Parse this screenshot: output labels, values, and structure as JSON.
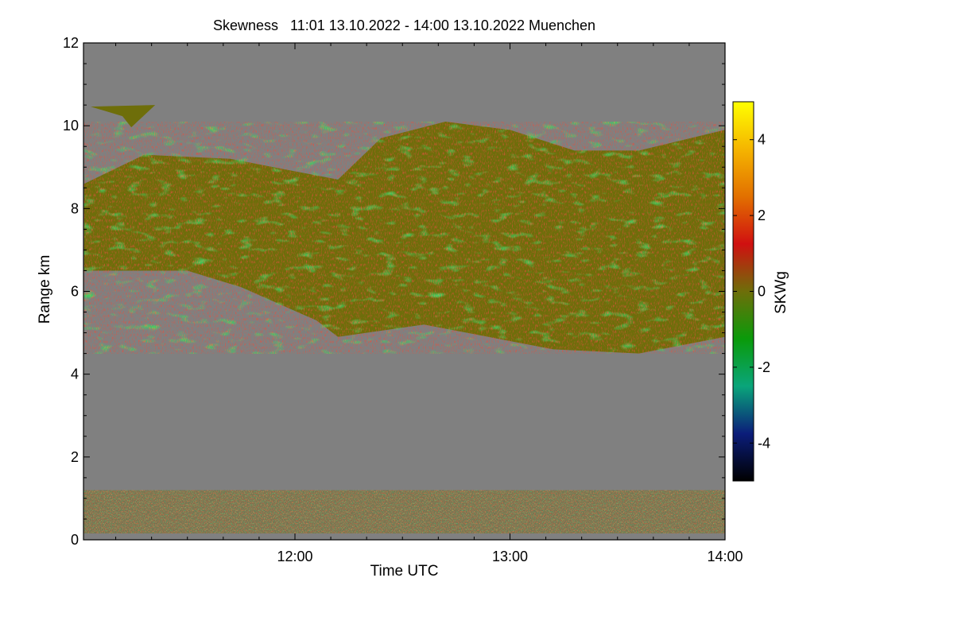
{
  "chart_data": {
    "type": "heatmap",
    "title": "Skewness   11:01 13.10.2022 - 14:00 13.10.2022 Muenchen",
    "xlabel": "Time UTC",
    "ylabel": "Range km",
    "x_ticks": [
      "12:00",
      "13:00",
      "14:00"
    ],
    "x_tick_hours": [
      12,
      13,
      14
    ],
    "xlim_hours": [
      11.0167,
      14.0
    ],
    "y_ticks": [
      "0",
      "2",
      "4",
      "6",
      "8",
      "10",
      "12"
    ],
    "y_tick_values": [
      0,
      2,
      4,
      6,
      8,
      10,
      12
    ],
    "ylim_km": [
      0,
      12
    ],
    "colorbar": {
      "label": "SKWg",
      "ticks": [
        "-4",
        "-2",
        "0",
        "2",
        "4"
      ],
      "tick_values": [
        -4,
        -2,
        0,
        2,
        4
      ],
      "range": [
        -5,
        5
      ],
      "colors": [
        "#000000",
        "#0b1d7a",
        "#0aa57a",
        "#0a9a0a",
        "#6e6e0a",
        "#d01010",
        "#e27000",
        "#f5b500",
        "#ffff00"
      ]
    },
    "background_color": "#808080",
    "cloud_layer": {
      "description_values": "main echo between ~4.5 and ~10 km",
      "top_km": [
        [
          11.02,
          8.6
        ],
        [
          11.3,
          9.3
        ],
        [
          11.7,
          9.2
        ],
        [
          12.2,
          8.7
        ],
        [
          12.4,
          9.7
        ],
        [
          12.7,
          10.1
        ],
        [
          13.0,
          9.9
        ],
        [
          13.3,
          9.4
        ],
        [
          13.6,
          9.4
        ],
        [
          14.0,
          9.9
        ]
      ],
      "bottom_km": [
        [
          11.02,
          6.5
        ],
        [
          11.5,
          6.5
        ],
        [
          11.75,
          6.1
        ],
        [
          12.1,
          5.3
        ],
        [
          12.2,
          4.9
        ],
        [
          12.6,
          5.2
        ],
        [
          12.9,
          4.9
        ],
        [
          13.2,
          4.6
        ],
        [
          13.6,
          4.5
        ],
        [
          14.0,
          4.9
        ]
      ],
      "upper_fragment_km": [
        [
          11.05,
          10.2
        ],
        [
          11.35,
          10.5
        ]
      ]
    },
    "boundary_layer_top_km": 1.2
  }
}
